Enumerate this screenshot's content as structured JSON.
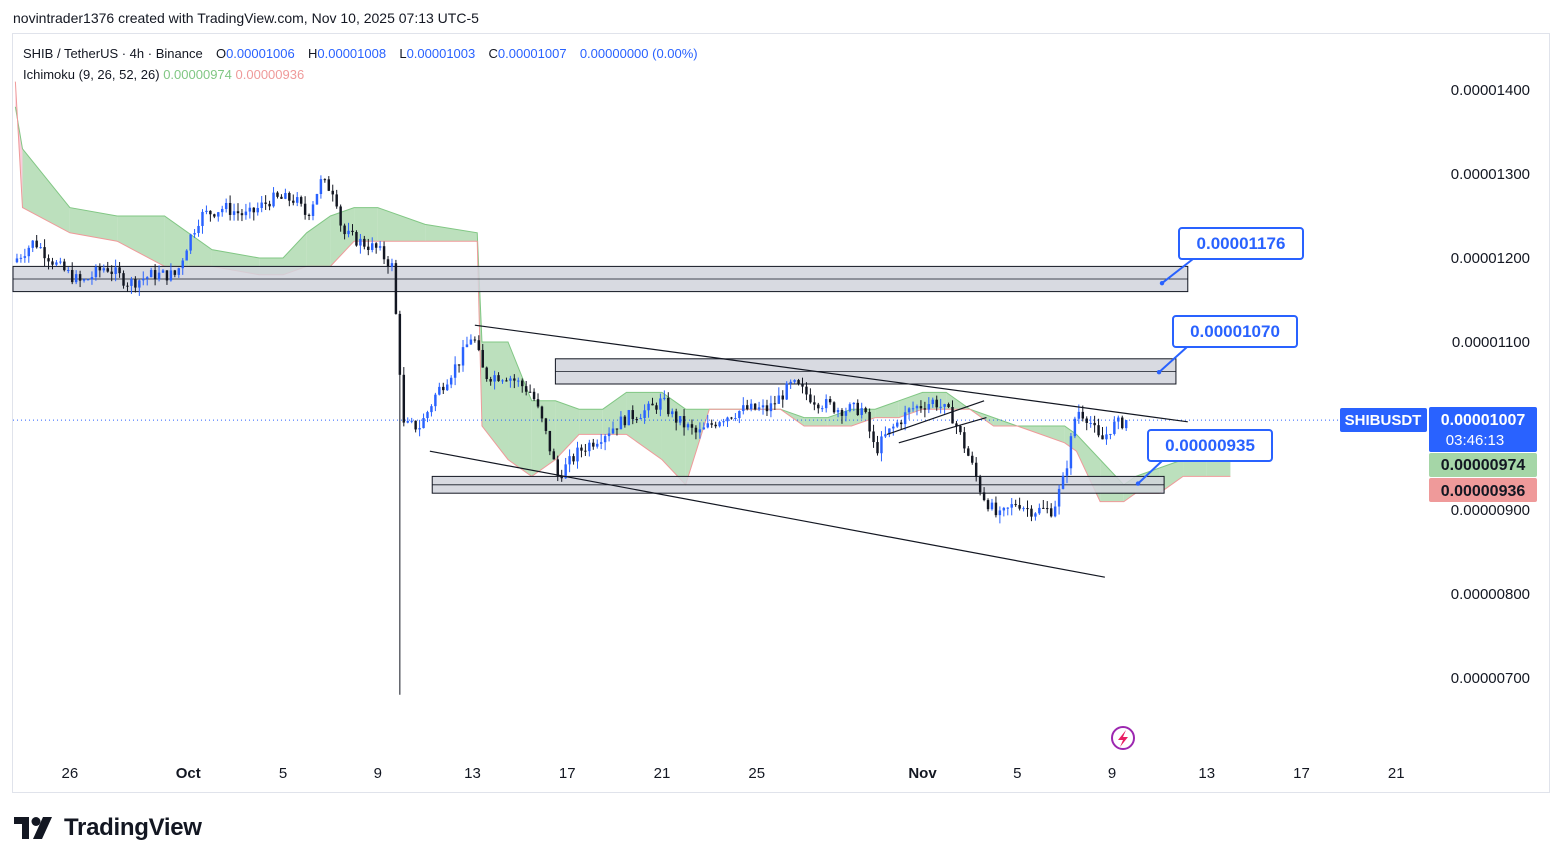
{
  "caption": "novintrader1376 created with TradingView.com, Nov 10, 2025 07:13 UTC-5",
  "legend": {
    "symbol": "SHIB / TetherUS · 4h · Binance",
    "o_label": "O",
    "o_value": "0.00001006",
    "h_label": "H",
    "h_value": "0.00001008",
    "l_label": "L",
    "l_value": "0.00001003",
    "c_label": "C",
    "c_value": "0.00001007",
    "change": "0.00000000 (0.00%)",
    "indicator": "Ichimoku (9, 26, 52, 26)",
    "ind_value_1": "0.00000974",
    "ind_value_2": "0.00000936"
  },
  "colors": {
    "up": "#2962ff",
    "down": "#131722",
    "cloud_bull": "#a5d6a7",
    "cloud_bear": "#f8bbd0",
    "callout": "#2962ff",
    "zone_fill": "#d1d4dc"
  },
  "price_tags": {
    "symbol": "SHIBUSDT",
    "last": "0.00001007",
    "countdown": "03:46:13",
    "ichimoku_a": "0.00000974",
    "ichimoku_b": "0.00000936"
  },
  "callouts": [
    {
      "text": "0.00001176",
      "price": 1.176e-05
    },
    {
      "text": "0.00001070",
      "price": 1.07e-05
    },
    {
      "text": "0.00000935",
      "price": 9.35e-06
    }
  ],
  "branding": "TradingView",
  "chart_data": {
    "type": "candlestick",
    "title": "SHIB / TetherUS · 4h · Binance",
    "y_axis": {
      "ticks": [
        {
          "value": 1.4e-05,
          "label": "0.00001400"
        },
        {
          "value": 1.3e-05,
          "label": "0.00001300"
        },
        {
          "value": 1.2e-05,
          "label": "0.00001200"
        },
        {
          "value": 1.1e-05,
          "label": "0.00001100"
        },
        {
          "value": 1e-05,
          "label": "0.00001000"
        },
        {
          "value": 9e-06,
          "label": "0.00000900"
        },
        {
          "value": 8e-06,
          "label": "0.00000800"
        },
        {
          "value": 7e-06,
          "label": "0.00000700"
        }
      ],
      "range": [
        6.2e-06,
        1.45e-05
      ]
    },
    "x_axis": {
      "unit": "days from Sep 26, 2025",
      "range": [
        -2.4,
        57.3
      ],
      "ticks": [
        {
          "day": 0,
          "label": "26"
        },
        {
          "day": 5,
          "label": "Oct"
        },
        {
          "day": 9,
          "label": "5"
        },
        {
          "day": 13,
          "label": "9"
        },
        {
          "day": 17,
          "label": "13"
        },
        {
          "day": 21,
          "label": "17"
        },
        {
          "day": 25,
          "label": "21"
        },
        {
          "day": 29,
          "label": "25"
        },
        {
          "day": 36,
          "label": "Nov"
        },
        {
          "day": 40,
          "label": "5"
        },
        {
          "day": 44,
          "label": "9"
        },
        {
          "day": 48,
          "label": "13"
        },
        {
          "day": 52,
          "label": "17"
        },
        {
          "day": 56,
          "label": "21"
        }
      ]
    },
    "anchors": [
      [
        -2.4,
        1.195e-05
      ],
      [
        -1.5,
        1.22e-05
      ],
      [
        -0.5,
        1.19e-05
      ],
      [
        0.5,
        1.17e-05
      ],
      [
        1.5,
        1.19e-05
      ],
      [
        2.5,
        1.17e-05
      ],
      [
        3.5,
        1.18e-05
      ],
      [
        4.5,
        1.18e-05
      ],
      [
        5.0,
        1.22e-05
      ],
      [
        5.5,
        1.25e-05
      ],
      [
        6.5,
        1.26e-05
      ],
      [
        7.5,
        1.25e-05
      ],
      [
        8.5,
        1.27e-05
      ],
      [
        9.5,
        1.27e-05
      ],
      [
        10.0,
        1.25e-05
      ],
      [
        10.6,
        1.29e-05
      ],
      [
        11.2,
        1.28e-05
      ],
      [
        11.5,
        1.23e-05
      ],
      [
        12.2,
        1.22e-05
      ],
      [
        13.0,
        1.21e-05
      ],
      [
        13.6,
        1.19e-05
      ],
      [
        13.8,
        1.12e-05
      ],
      [
        14.1,
        1e-05
      ],
      [
        14.8,
        1e-05
      ],
      [
        15.5,
        1.04e-05
      ],
      [
        16.5,
        1.08e-05
      ],
      [
        17.0,
        1.11e-05
      ],
      [
        17.5,
        1.06e-05
      ],
      [
        18.5,
        1.06e-05
      ],
      [
        19.5,
        1.04e-05
      ],
      [
        20.0,
        1e-05
      ],
      [
        20.6,
        9.4e-06
      ],
      [
        21.5,
        9.7e-06
      ],
      [
        22.5,
        9.9e-06
      ],
      [
        23.5,
        1.01e-05
      ],
      [
        24.5,
        1.02e-05
      ],
      [
        25.0,
        1.03e-05
      ],
      [
        25.5,
        1.01e-05
      ],
      [
        26.5,
        9.9e-06
      ],
      [
        27.5,
        1.01e-05
      ],
      [
        28.5,
        1.02e-05
      ],
      [
        29.5,
        1.02e-05
      ],
      [
        30.5,
        1.05e-05
      ],
      [
        31.5,
        1.03e-05
      ],
      [
        32.5,
        1.02e-05
      ],
      [
        33.5,
        1.02e-05
      ],
      [
        34.0,
        9.7e-06
      ],
      [
        34.5,
        9.9e-06
      ],
      [
        35.5,
        1.02e-05
      ],
      [
        36.5,
        1.03e-05
      ],
      [
        37.3,
        1.01e-05
      ],
      [
        38.0,
        9.6e-06
      ],
      [
        38.5,
        9.2e-06
      ],
      [
        39.2,
        8.9e-06
      ],
      [
        40.0,
        9.1e-06
      ],
      [
        40.5,
        9e-06
      ],
      [
        41.5,
        9e-06
      ],
      [
        42.0,
        9.4e-06
      ],
      [
        42.5,
        1.02e-05
      ],
      [
        43.0,
        1.01e-05
      ],
      [
        43.5,
        9.8e-06
      ],
      [
        44.0,
        1e-05
      ],
      [
        44.7,
        1.007e-05
      ]
    ],
    "spike_low": {
      "day": 14.0,
      "price": 6.8e-06
    },
    "cloud": {
      "upper": [
        [
          -2.3,
          1.38e-05
        ],
        [
          -2,
          1.33e-05
        ],
        [
          0,
          1.26e-05
        ],
        [
          2,
          1.25e-05
        ],
        [
          4,
          1.25e-05
        ],
        [
          5,
          1.23e-05
        ],
        [
          6,
          1.21e-05
        ],
        [
          8,
          1.2e-05
        ],
        [
          9,
          1.2e-05
        ],
        [
          10,
          1.23e-05
        ],
        [
          11,
          1.25e-05
        ],
        [
          12,
          1.26e-05
        ],
        [
          13,
          1.26e-05
        ],
        [
          15,
          1.24e-05
        ],
        [
          17.2,
          1.23e-05
        ],
        [
          17.4,
          1.1e-05
        ],
        [
          18.5,
          1.1e-05
        ],
        [
          19.5,
          1.03e-05
        ],
        [
          20.5,
          1.03e-05
        ],
        [
          21.5,
          1.02e-05
        ],
        [
          22.5,
          1.02e-05
        ],
        [
          23.5,
          1.04e-05
        ],
        [
          25,
          1.04e-05
        ],
        [
          26,
          1.02e-05
        ],
        [
          27,
          1.02e-05
        ],
        [
          28,
          1.02e-05
        ],
        [
          29,
          1.02e-05
        ],
        [
          30,
          1.02e-05
        ],
        [
          31,
          1.01e-05
        ],
        [
          32,
          1.01e-05
        ],
        [
          33,
          1.02e-05
        ],
        [
          34,
          1.02e-05
        ],
        [
          35,
          1.03e-05
        ],
        [
          36,
          1.04e-05
        ],
        [
          37,
          1.04e-05
        ],
        [
          38,
          1.02e-05
        ],
        [
          39,
          1.01e-05
        ],
        [
          40,
          1e-05
        ],
        [
          41,
          1e-05
        ],
        [
          42,
          1e-05
        ],
        [
          42.5,
          9.9e-06
        ],
        [
          43.5,
          9.6e-06
        ],
        [
          44.5,
          9.3e-06
        ],
        [
          45,
          9.4e-06
        ],
        [
          46,
          9.5e-06
        ],
        [
          47,
          9.6e-06
        ],
        [
          48,
          9.7e-06
        ],
        [
          49,
          9.7e-06
        ]
      ],
      "lower": [
        [
          -2.3,
          1.41e-05
        ],
        [
          -2,
          1.26e-05
        ],
        [
          0,
          1.23e-05
        ],
        [
          2,
          1.22e-05
        ],
        [
          4,
          1.19e-05
        ],
        [
          5,
          1.19e-05
        ],
        [
          6,
          1.19e-05
        ],
        [
          8,
          1.18e-05
        ],
        [
          9,
          1.18e-05
        ],
        [
          10,
          1.19e-05
        ],
        [
          11,
          1.19e-05
        ],
        [
          12,
          1.22e-05
        ],
        [
          13,
          1.22e-05
        ],
        [
          15,
          1.22e-05
        ],
        [
          17.2,
          1.22e-05
        ],
        [
          17.4,
          1e-05
        ],
        [
          18.5,
          9.6e-06
        ],
        [
          19.5,
          9.4e-06
        ],
        [
          20.5,
          9.6e-06
        ],
        [
          21.5,
          9.9e-06
        ],
        [
          22.5,
          9.9e-06
        ],
        [
          23.5,
          9.9e-06
        ],
        [
          25,
          9.6e-06
        ],
        [
          26,
          9.3e-06
        ],
        [
          27,
          1.02e-05
        ],
        [
          28,
          1.02e-05
        ],
        [
          29,
          1.02e-05
        ],
        [
          30,
          1.02e-05
        ],
        [
          31,
          1e-05
        ],
        [
          32,
          1e-05
        ],
        [
          33,
          1e-05
        ],
        [
          34,
          1.01e-05
        ],
        [
          35,
          1.01e-05
        ],
        [
          36,
          1.02e-05
        ],
        [
          37,
          1.02e-05
        ],
        [
          38,
          1.02e-05
        ],
        [
          39,
          1e-05
        ],
        [
          40,
          1e-05
        ],
        [
          41,
          9.9e-06
        ],
        [
          42,
          9.8e-06
        ],
        [
          42.5,
          9.7e-06
        ],
        [
          43.5,
          9.1e-06
        ],
        [
          44.5,
          9.1e-06
        ],
        [
          45,
          9.2e-06
        ],
        [
          46,
          9.2e-06
        ],
        [
          47,
          9.4e-06
        ],
        [
          48,
          9.4e-06
        ],
        [
          49,
          9.4e-06
        ]
      ]
    },
    "zones": [
      {
        "from": -2.4,
        "to": 47.2,
        "top": 1.19e-05,
        "bottom": 1.16e-05
      },
      {
        "from": 20.5,
        "to": 46.7,
        "top": 1.08e-05,
        "bottom": 1.05e-05
      },
      {
        "from": 15.3,
        "to": 46.2,
        "top": 9.4e-06,
        "bottom": 9.2e-06
      }
    ],
    "trendlines": [
      {
        "from": [
          17.1,
          1.12e-05
        ],
        "to": [
          47.2,
          1.005e-05
        ]
      },
      {
        "from": [
          15.2,
          9.7e-06
        ],
        "to": [
          43.7,
          8.2e-06
        ]
      },
      {
        "from": [
          34.5,
          9.9e-06
        ],
        "to": [
          38.6,
          1.03e-05
        ]
      },
      {
        "from": [
          35.0,
          9.8e-06
        ],
        "to": [
          38.7,
          1.01e-05
        ]
      }
    ]
  }
}
